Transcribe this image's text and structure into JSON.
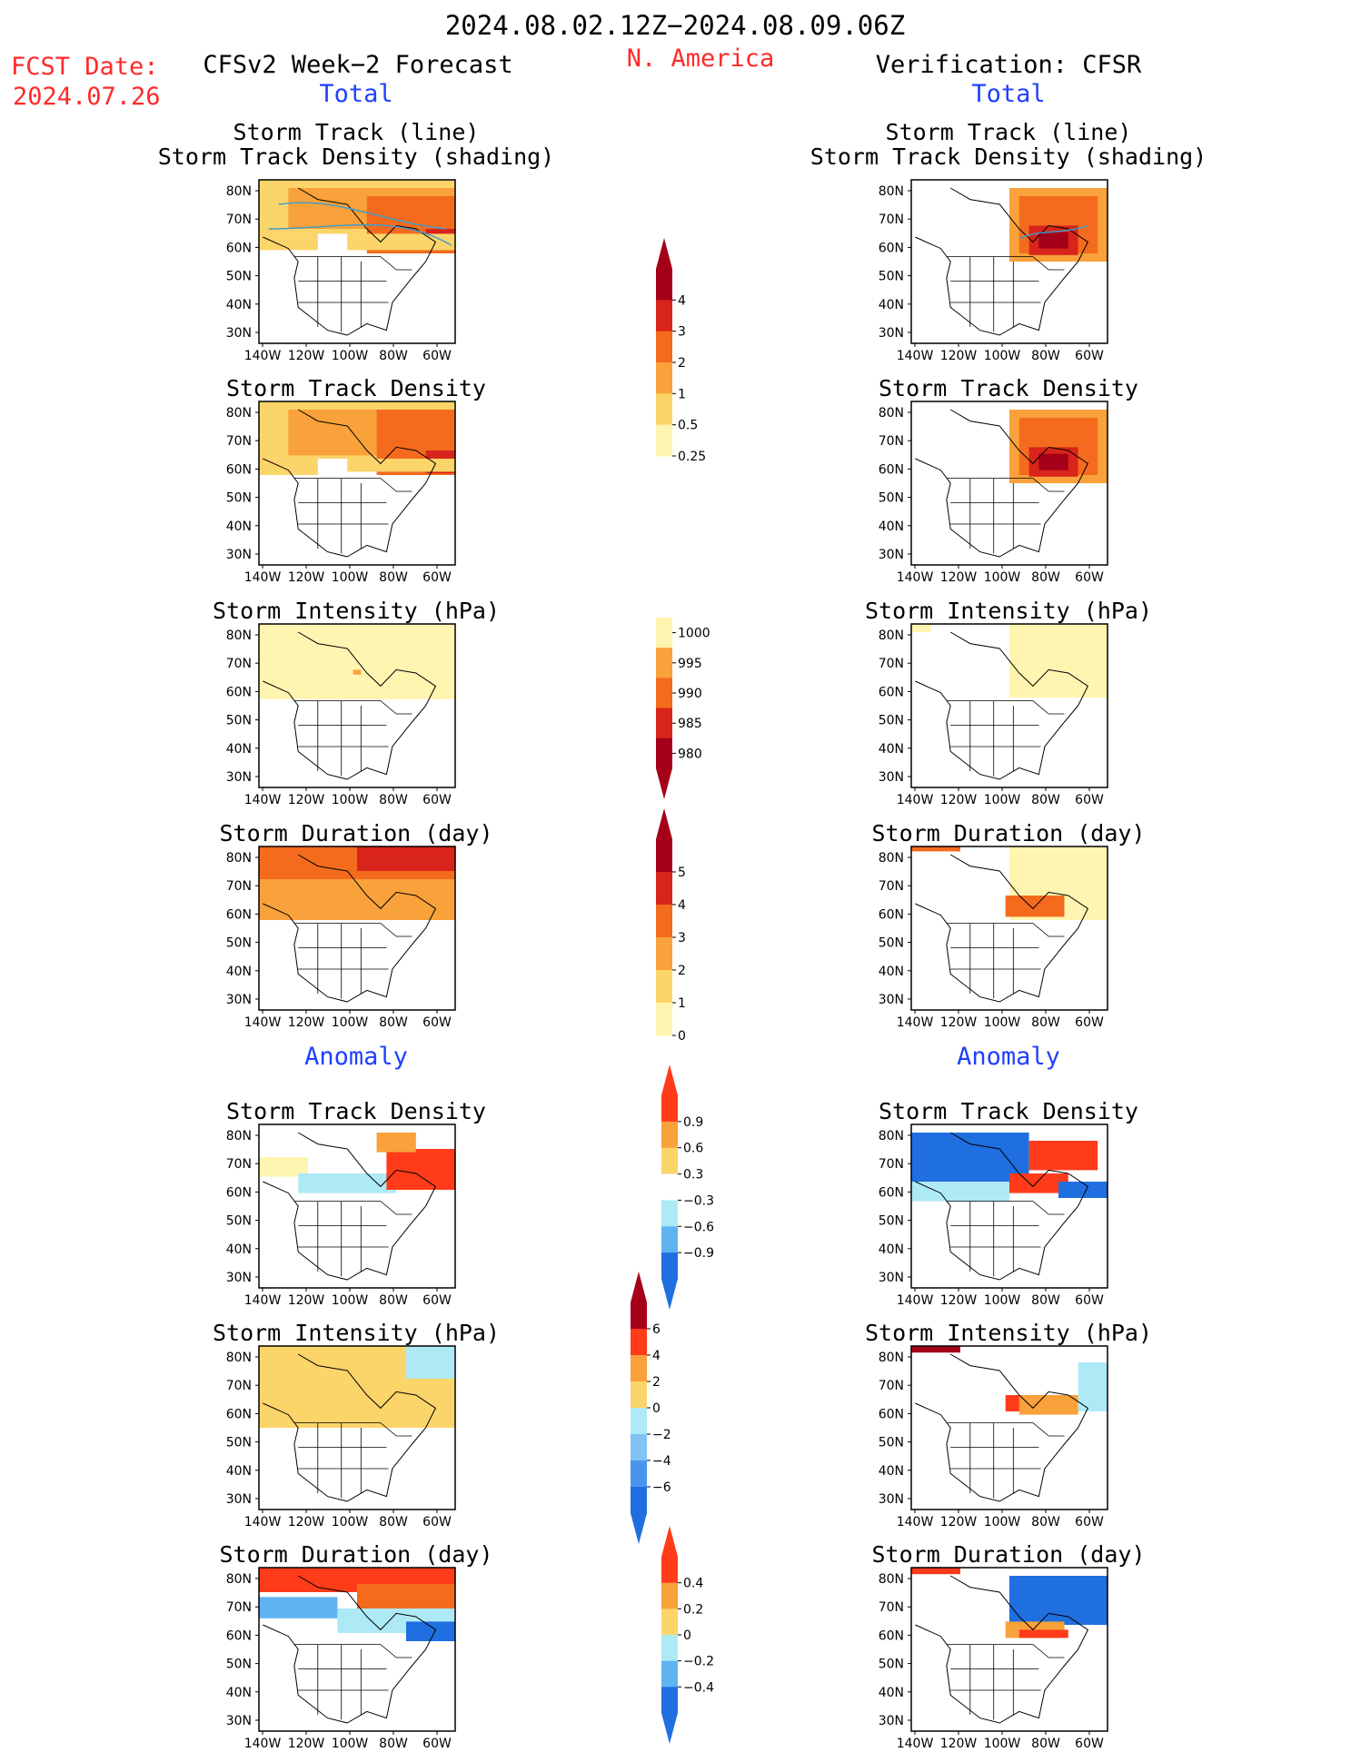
{
  "header": {
    "date_range": "2024.08.02.12Z−2024.08.09.06Z",
    "region": "N. America",
    "fcst_label": "FCST Date:",
    "fcst_date": "2024.07.26",
    "left_title": "CFSv2 Week−2 Forecast",
    "right_title": "Verification: CFSR",
    "total_label": "Total",
    "anomaly_label": "Anomaly"
  },
  "map_axes": {
    "x_ticks": [
      "140W",
      "120W",
      "100W",
      "80W",
      "60W"
    ],
    "y_ticks": [
      "80N",
      "70N",
      "60N",
      "50N",
      "40N",
      "30N"
    ]
  },
  "panels": {
    "total": [
      {
        "title": "Storm Track (line)\nStorm Track Density (shading)"
      },
      {
        "title": "Storm Track Density"
      },
      {
        "title": "Storm Intensity (hPa)"
      },
      {
        "title": "Storm Duration (day)"
      }
    ],
    "anomaly": [
      {
        "title": "Storm Track Density"
      },
      {
        "title": "Storm Intensity (hPa)"
      },
      {
        "title": "Storm Duration (day)"
      }
    ]
  },
  "colorbars": [
    {
      "labels": [
        "0.25",
        "0.5",
        "1",
        "2",
        "3",
        "4"
      ],
      "colors": [
        "#fff5b0",
        "#fbd46a",
        "#f9a13a",
        "#f46b1e",
        "#d8241a",
        "#a5001a"
      ],
      "direction": "up"
    },
    {
      "labels": [
        "1000",
        "995",
        "990",
        "985",
        "980"
      ],
      "colors": [
        "#fff5b0",
        "#f9a13a",
        "#f46b1e",
        "#d8241a",
        "#a5001a"
      ],
      "direction": "down"
    },
    {
      "labels": [
        "0",
        "1",
        "2",
        "3",
        "4",
        "5"
      ],
      "colors": [
        "#fff5b0",
        "#fbd46a",
        "#f9a13a",
        "#f46b1e",
        "#d8241a",
        "#a5001a"
      ],
      "direction": "up"
    },
    {
      "labels": [
        "0.9",
        "0.6",
        "0.3",
        "−0.3",
        "−0.6",
        "−0.9"
      ],
      "colors": [
        "#ff3b1a",
        "#f9a13a",
        "#fbd46a",
        "#ffffff",
        "#aeeaf5",
        "#5fb3f0",
        "#1f6fe0"
      ],
      "direction": "both"
    },
    {
      "labels": [
        "6",
        "4",
        "2",
        "0",
        "−2",
        "−4",
        "−6"
      ],
      "colors": [
        "#a5001a",
        "#ff3b1a",
        "#f9a13a",
        "#fbd46a",
        "#aeeaf5",
        "#80c4f2",
        "#4a94ee",
        "#1f6fe0"
      ],
      "direction": "both"
    },
    {
      "labels": [
        "0.4",
        "0.2",
        "0",
        "−0.2",
        "−0.4"
      ],
      "colors": [
        "#ff3b1a",
        "#f9a13a",
        "#fbd46a",
        "#aeeaf5",
        "#5fb3f0",
        "#1f6fe0"
      ],
      "direction": "both"
    }
  ],
  "colors": {
    "title_red": "#ff2a2a",
    "label_blue": "#2040ff"
  }
}
